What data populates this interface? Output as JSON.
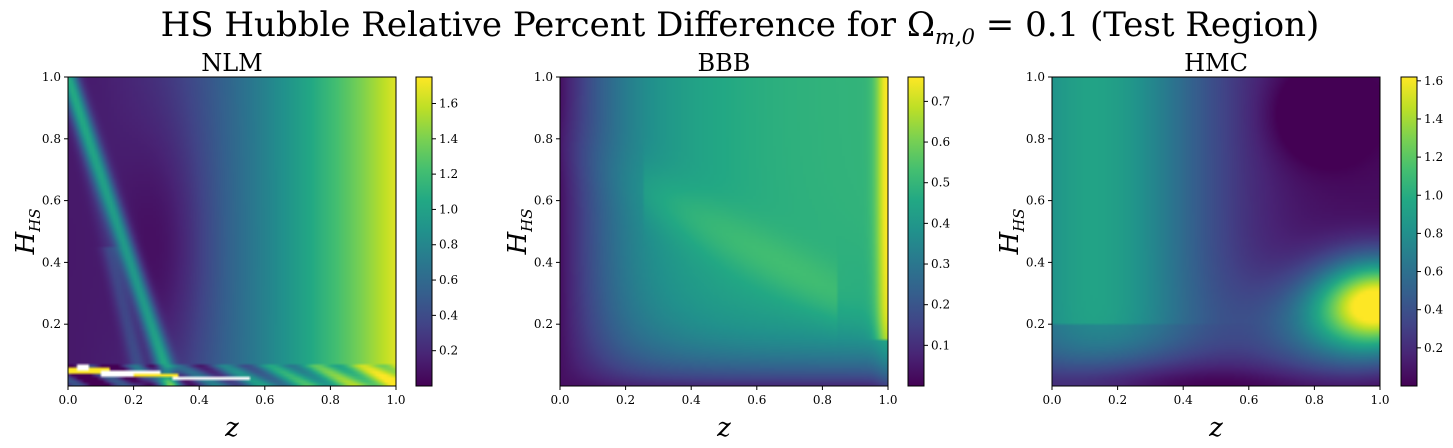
{
  "figure": {
    "title": "HS Hubble Relative Percent Difference for Ω",
    "title_sub": "m,0",
    "title_tail": " = 0.1 (Test Region)"
  },
  "chart_data": [
    {
      "type": "heatmap",
      "title": "NLM",
      "xlabel": "z",
      "ylabel": "H",
      "ylabel_sub": "HS",
      "xlim": [
        0.0,
        1.0
      ],
      "ylim": [
        0.0,
        1.0
      ],
      "xticks": [
        "0.0",
        "0.2",
        "0.4",
        "0.6",
        "0.8",
        "1.0"
      ],
      "yticks": [
        "0.2",
        "0.4",
        "0.6",
        "0.8",
        "1.0"
      ],
      "colorbar": {
        "min": 0.0,
        "max": 1.75,
        "ticks": [
          "0.2",
          "0.4",
          "0.6",
          "0.8",
          "1.0",
          "1.2",
          "1.4",
          "1.6"
        ]
      },
      "colormap": "viridis",
      "pattern": "nlm"
    },
    {
      "type": "heatmap",
      "title": "BBB",
      "xlabel": "z",
      "ylabel": "H",
      "ylabel_sub": "HS",
      "xlim": [
        0.0,
        1.0
      ],
      "ylim": [
        0.0,
        1.0
      ],
      "xticks": [
        "0.0",
        "0.2",
        "0.4",
        "0.6",
        "0.8",
        "1.0"
      ],
      "yticks": [
        "0.2",
        "0.4",
        "0.6",
        "0.8",
        "1.0"
      ],
      "colorbar": {
        "min": 0.0,
        "max": 0.76,
        "ticks": [
          "0.1",
          "0.2",
          "0.3",
          "0.4",
          "0.5",
          "0.6",
          "0.7"
        ]
      },
      "colormap": "viridis",
      "pattern": "bbb"
    },
    {
      "type": "heatmap",
      "title": "HMC",
      "xlabel": "z",
      "ylabel": "H",
      "ylabel_sub": "HS",
      "xlim": [
        0.0,
        1.0
      ],
      "ylim": [
        0.0,
        1.0
      ],
      "xticks": [
        "0.0",
        "0.2",
        "0.4",
        "0.6",
        "0.8",
        "1.0"
      ],
      "yticks": [
        "0.2",
        "0.4",
        "0.6",
        "0.8",
        "1.0"
      ],
      "colorbar": {
        "min": 0.0,
        "max": 1.62,
        "ticks": [
          "0.2",
          "0.4",
          "0.6",
          "0.8",
          "1.0",
          "1.2",
          "1.4",
          "1.6"
        ]
      },
      "colormap": "viridis",
      "pattern": "hmc"
    }
  ]
}
